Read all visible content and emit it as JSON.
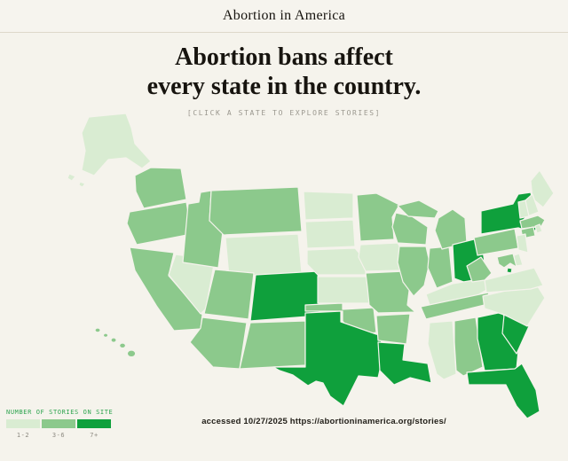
{
  "header": {
    "title": "Abortion in America"
  },
  "hero": {
    "title_line1": "Abortion bans affect",
    "title_line2": "every state in the country.",
    "subtitle": "[CLICK A STATE TO EXPLORE STORIES]"
  },
  "map": {
    "states": [
      {
        "code": "AK",
        "name": "Alaska",
        "category": "1-2"
      },
      {
        "code": "HI",
        "name": "Hawaii",
        "category": "3-6"
      },
      {
        "code": "WA",
        "name": "Washington",
        "category": "3-6"
      },
      {
        "code": "OR",
        "name": "Oregon",
        "category": "3-6"
      },
      {
        "code": "CA",
        "name": "California",
        "category": "3-6"
      },
      {
        "code": "NV",
        "name": "Nevada",
        "category": "1-2"
      },
      {
        "code": "ID",
        "name": "Idaho",
        "category": "3-6"
      },
      {
        "code": "MT",
        "name": "Montana",
        "category": "3-6"
      },
      {
        "code": "WY",
        "name": "Wyoming",
        "category": "1-2"
      },
      {
        "code": "UT",
        "name": "Utah",
        "category": "3-6"
      },
      {
        "code": "CO",
        "name": "Colorado",
        "category": "7+"
      },
      {
        "code": "AZ",
        "name": "Arizona",
        "category": "3-6"
      },
      {
        "code": "NM",
        "name": "New Mexico",
        "category": "3-6"
      },
      {
        "code": "ND",
        "name": "North Dakota",
        "category": "1-2"
      },
      {
        "code": "SD",
        "name": "South Dakota",
        "category": "1-2"
      },
      {
        "code": "NE",
        "name": "Nebraska",
        "category": "1-2"
      },
      {
        "code": "KS",
        "name": "Kansas",
        "category": "1-2"
      },
      {
        "code": "OK",
        "name": "Oklahoma",
        "category": "3-6"
      },
      {
        "code": "TX",
        "name": "Texas",
        "category": "7+"
      },
      {
        "code": "MN",
        "name": "Minnesota",
        "category": "3-6"
      },
      {
        "code": "IA",
        "name": "Iowa",
        "category": "1-2"
      },
      {
        "code": "MO",
        "name": "Missouri",
        "category": "3-6"
      },
      {
        "code": "AR",
        "name": "Arkansas",
        "category": "3-6"
      },
      {
        "code": "LA",
        "name": "Louisiana",
        "category": "7+"
      },
      {
        "code": "WI",
        "name": "Wisconsin",
        "category": "3-6"
      },
      {
        "code": "IL",
        "name": "Illinois",
        "category": "3-6"
      },
      {
        "code": "IN",
        "name": "Indiana",
        "category": "3-6"
      },
      {
        "code": "MI",
        "name": "Michigan",
        "category": "3-6"
      },
      {
        "code": "OH",
        "name": "Ohio",
        "category": "7+"
      },
      {
        "code": "KY",
        "name": "Kentucky",
        "category": "1-2"
      },
      {
        "code": "TN",
        "name": "Tennessee",
        "category": "3-6"
      },
      {
        "code": "MS",
        "name": "Mississippi",
        "category": "1-2"
      },
      {
        "code": "AL",
        "name": "Alabama",
        "category": "3-6"
      },
      {
        "code": "GA",
        "name": "Georgia",
        "category": "7+"
      },
      {
        "code": "FL",
        "name": "Florida",
        "category": "7+"
      },
      {
        "code": "SC",
        "name": "South Carolina",
        "category": "7+"
      },
      {
        "code": "NC",
        "name": "North Carolina",
        "category": "1-2"
      },
      {
        "code": "VA",
        "name": "Virginia",
        "category": "1-2"
      },
      {
        "code": "WV",
        "name": "West Virginia",
        "category": "3-6"
      },
      {
        "code": "PA",
        "name": "Pennsylvania",
        "category": "3-6"
      },
      {
        "code": "NY",
        "name": "New York",
        "category": "7+"
      },
      {
        "code": "ME",
        "name": "Maine",
        "category": "1-2"
      },
      {
        "code": "NH",
        "name": "New Hampshire",
        "category": "1-2"
      },
      {
        "code": "VT",
        "name": "Vermont",
        "category": "1-2"
      },
      {
        "code": "MA",
        "name": "Massachusetts",
        "category": "3-6"
      },
      {
        "code": "CT",
        "name": "Connecticut",
        "category": "3-6"
      },
      {
        "code": "RI",
        "name": "Rhode Island",
        "category": "1-2"
      },
      {
        "code": "NJ",
        "name": "New Jersey",
        "category": "1-2"
      },
      {
        "code": "DE",
        "name": "Delaware",
        "category": "1-2"
      },
      {
        "code": "MD",
        "name": "Maryland",
        "category": "3-6"
      },
      {
        "code": "DC",
        "name": "District of Columbia",
        "category": "7+"
      }
    ]
  },
  "legend": {
    "title": "NUMBER OF STORIES ON SITE",
    "title_color": "#2ea44f",
    "items": [
      {
        "label": "1-2",
        "color": "#d9ecd2"
      },
      {
        "label": "3-6",
        "color": "#8cc98c"
      },
      {
        "label": "7+",
        "color": "#0fa03c"
      }
    ]
  },
  "footer": {
    "note": "accessed 10/27/2025 https://abortioninamerica.org/stories/"
  }
}
